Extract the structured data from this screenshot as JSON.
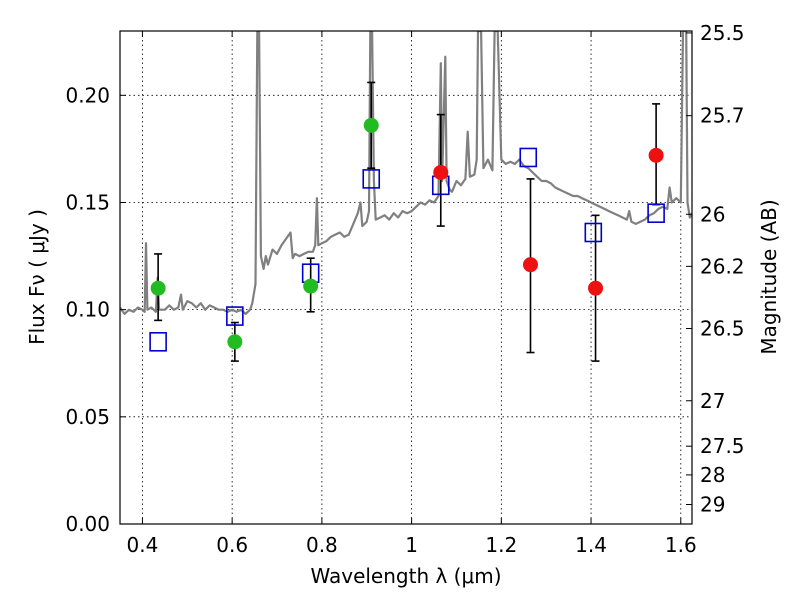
{
  "chart_data": {
    "type": "scatter",
    "title": "",
    "xlabel": "Wavelength  λ (μm)",
    "ylabel": "Flux  Fν  ( μJy )",
    "y2label": "Magnitude (AB)",
    "xlim": [
      0.35,
      1.625
    ],
    "ylim": [
      0.0,
      0.23
    ],
    "grid": true,
    "x_ticks": [
      0.4,
      0.6,
      0.8,
      1.0,
      1.2,
      1.4,
      1.6
    ],
    "x_tick_labels": [
      "0.4",
      "0.6",
      "0.8",
      "1",
      "1.2",
      "1.4",
      "1.6"
    ],
    "y_ticks": [
      0.0,
      0.05,
      0.1,
      0.15,
      0.2
    ],
    "y_tick_labels": [
      "0.00",
      "0.05",
      "0.10",
      "0.15",
      "0.20"
    ],
    "y2_ticks": [
      {
        "label": "25.5",
        "flux": 0.2291
      },
      {
        "label": "25.7",
        "flux": 0.1905
      },
      {
        "label": "26",
        "flux": 0.1445
      },
      {
        "label": "26.2",
        "flux": 0.1202
      },
      {
        "label": "26.5",
        "flux": 0.0912
      },
      {
        "label": "27",
        "flux": 0.0575
      },
      {
        "label": "27.5",
        "flux": 0.0363
      },
      {
        "label": "28",
        "flux": 0.0229
      },
      {
        "label": "29",
        "flux": 0.0091
      }
    ],
    "colors": {
      "spectrum": "#808080",
      "hst_points": "#22bb22",
      "ir_points": "#ee1111",
      "model_points": "#0000cc",
      "error_bars": "#000000"
    },
    "observed_green": [
      {
        "x": 0.435,
        "y": 0.11,
        "yerr_low": 0.095,
        "yerr_high": 0.126
      },
      {
        "x": 0.606,
        "y": 0.085,
        "yerr_low": 0.076,
        "yerr_high": 0.094
      },
      {
        "x": 0.775,
        "y": 0.111,
        "yerr_low": 0.099,
        "yerr_high": 0.124
      },
      {
        "x": 0.91,
        "y": 0.186,
        "yerr_low": 0.166,
        "yerr_high": 0.206
      }
    ],
    "observed_red": [
      {
        "x": 1.065,
        "y": 0.164,
        "yerr_low": 0.139,
        "yerr_high": 0.191
      },
      {
        "x": 1.265,
        "y": 0.121,
        "yerr_low": 0.08,
        "yerr_high": 0.161
      },
      {
        "x": 1.41,
        "y": 0.11,
        "yerr_low": 0.076,
        "yerr_high": 0.144
      },
      {
        "x": 1.545,
        "y": 0.172,
        "yerr_low": 0.149,
        "yerr_high": 0.196
      }
    ],
    "model_squares": [
      {
        "x": 0.435,
        "y": 0.085
      },
      {
        "x": 0.606,
        "y": 0.097
      },
      {
        "x": 0.775,
        "y": 0.117
      },
      {
        "x": 0.91,
        "y": 0.161
      },
      {
        "x": 1.065,
        "y": 0.158
      },
      {
        "x": 1.26,
        "y": 0.171
      },
      {
        "x": 1.405,
        "y": 0.136
      },
      {
        "x": 1.545,
        "y": 0.145
      }
    ],
    "spectrum": [
      [
        0.35,
        0.101
      ],
      [
        0.36,
        0.098
      ],
      [
        0.37,
        0.1
      ],
      [
        0.38,
        0.099
      ],
      [
        0.39,
        0.101
      ],
      [
        0.4,
        0.1
      ],
      [
        0.405,
        0.099
      ],
      [
        0.408,
        0.131
      ],
      [
        0.411,
        0.1
      ],
      [
        0.42,
        0.101
      ],
      [
        0.43,
        0.099
      ],
      [
        0.434,
        0.115
      ],
      [
        0.437,
        0.1
      ],
      [
        0.45,
        0.1
      ],
      [
        0.46,
        0.102
      ],
      [
        0.47,
        0.1
      ],
      [
        0.48,
        0.101
      ],
      [
        0.486,
        0.107
      ],
      [
        0.49,
        0.1
      ],
      [
        0.5,
        0.104
      ],
      [
        0.51,
        0.103
      ],
      [
        0.52,
        0.101
      ],
      [
        0.53,
        0.103
      ],
      [
        0.54,
        0.1
      ],
      [
        0.55,
        0.102
      ],
      [
        0.56,
        0.101
      ],
      [
        0.57,
        0.1
      ],
      [
        0.58,
        0.1
      ],
      [
        0.59,
        0.099
      ],
      [
        0.6,
        0.1
      ],
      [
        0.61,
        0.099
      ],
      [
        0.62,
        0.1
      ],
      [
        0.63,
        0.098
      ],
      [
        0.64,
        0.1
      ],
      [
        0.645,
        0.103
      ],
      [
        0.652,
        0.112
      ],
      [
        0.656,
        0.23
      ],
      [
        0.66,
        0.23
      ],
      [
        0.664,
        0.125
      ],
      [
        0.67,
        0.119
      ],
      [
        0.675,
        0.125
      ],
      [
        0.68,
        0.121
      ],
      [
        0.69,
        0.128
      ],
      [
        0.7,
        0.126
      ],
      [
        0.71,
        0.13
      ],
      [
        0.72,
        0.133
      ],
      [
        0.73,
        0.136
      ],
      [
        0.735,
        0.124
      ],
      [
        0.74,
        0.126
      ],
      [
        0.75,
        0.125
      ],
      [
        0.76,
        0.126
      ],
      [
        0.77,
        0.127
      ],
      [
        0.78,
        0.127
      ],
      [
        0.785,
        0.13
      ],
      [
        0.789,
        0.152
      ],
      [
        0.792,
        0.13
      ],
      [
        0.8,
        0.131
      ],
      [
        0.81,
        0.132
      ],
      [
        0.82,
        0.134
      ],
      [
        0.83,
        0.135
      ],
      [
        0.84,
        0.136
      ],
      [
        0.85,
        0.134
      ],
      [
        0.86,
        0.135
      ],
      [
        0.87,
        0.14
      ],
      [
        0.88,
        0.145
      ],
      [
        0.886,
        0.15
      ],
      [
        0.89,
        0.139
      ],
      [
        0.9,
        0.141
      ],
      [
        0.905,
        0.146
      ],
      [
        0.908,
        0.23
      ],
      [
        0.912,
        0.23
      ],
      [
        0.916,
        0.16
      ],
      [
        0.92,
        0.142
      ],
      [
        0.93,
        0.143
      ],
      [
        0.94,
        0.144
      ],
      [
        0.95,
        0.142
      ],
      [
        0.96,
        0.145
      ],
      [
        0.97,
        0.143
      ],
      [
        0.98,
        0.146
      ],
      [
        0.99,
        0.145
      ],
      [
        1.0,
        0.146
      ],
      [
        1.01,
        0.148
      ],
      [
        1.02,
        0.15
      ],
      [
        1.03,
        0.149
      ],
      [
        1.04,
        0.151
      ],
      [
        1.05,
        0.15
      ],
      [
        1.06,
        0.153
      ],
      [
        1.065,
        0.215
      ],
      [
        1.068,
        0.16
      ],
      [
        1.075,
        0.218
      ],
      [
        1.078,
        0.16
      ],
      [
        1.085,
        0.156
      ],
      [
        1.09,
        0.155
      ],
      [
        1.1,
        0.16
      ],
      [
        1.11,
        0.158
      ],
      [
        1.12,
        0.161
      ],
      [
        1.125,
        0.183
      ],
      [
        1.13,
        0.162
      ],
      [
        1.14,
        0.163
      ],
      [
        1.145,
        0.17
      ],
      [
        1.148,
        0.23
      ],
      [
        1.155,
        0.23
      ],
      [
        1.16,
        0.166
      ],
      [
        1.17,
        0.17
      ],
      [
        1.18,
        0.165
      ],
      [
        1.185,
        0.23
      ],
      [
        1.192,
        0.23
      ],
      [
        1.2,
        0.17
      ],
      [
        1.21,
        0.168
      ],
      [
        1.22,
        0.169
      ],
      [
        1.23,
        0.168
      ],
      [
        1.24,
        0.17
      ],
      [
        1.25,
        0.167
      ],
      [
        1.26,
        0.166
      ],
      [
        1.27,
        0.164
      ],
      [
        1.28,
        0.162
      ],
      [
        1.29,
        0.16
      ],
      [
        1.3,
        0.16
      ],
      [
        1.31,
        0.159
      ],
      [
        1.32,
        0.157
      ],
      [
        1.33,
        0.156
      ],
      [
        1.34,
        0.155
      ],
      [
        1.35,
        0.154
      ],
      [
        1.36,
        0.153
      ],
      [
        1.37,
        0.153
      ],
      [
        1.38,
        0.152
      ],
      [
        1.39,
        0.151
      ],
      [
        1.4,
        0.15
      ],
      [
        1.41,
        0.149
      ],
      [
        1.42,
        0.148
      ],
      [
        1.43,
        0.147
      ],
      [
        1.44,
        0.146
      ],
      [
        1.45,
        0.145
      ],
      [
        1.46,
        0.144
      ],
      [
        1.47,
        0.143
      ],
      [
        1.48,
        0.142
      ],
      [
        1.485,
        0.146
      ],
      [
        1.49,
        0.141
      ],
      [
        1.5,
        0.14
      ],
      [
        1.51,
        0.141
      ],
      [
        1.52,
        0.142
      ],
      [
        1.53,
        0.144
      ],
      [
        1.54,
        0.145
      ],
      [
        1.55,
        0.147
      ],
      [
        1.56,
        0.148
      ],
      [
        1.57,
        0.147
      ],
      [
        1.575,
        0.157
      ],
      [
        1.58,
        0.15
      ],
      [
        1.59,
        0.152
      ],
      [
        1.6,
        0.15
      ],
      [
        1.605,
        0.23
      ],
      [
        1.612,
        0.23
      ],
      [
        1.615,
        0.15
      ],
      [
        1.62,
        0.143
      ],
      [
        1.625,
        0.145
      ]
    ]
  }
}
